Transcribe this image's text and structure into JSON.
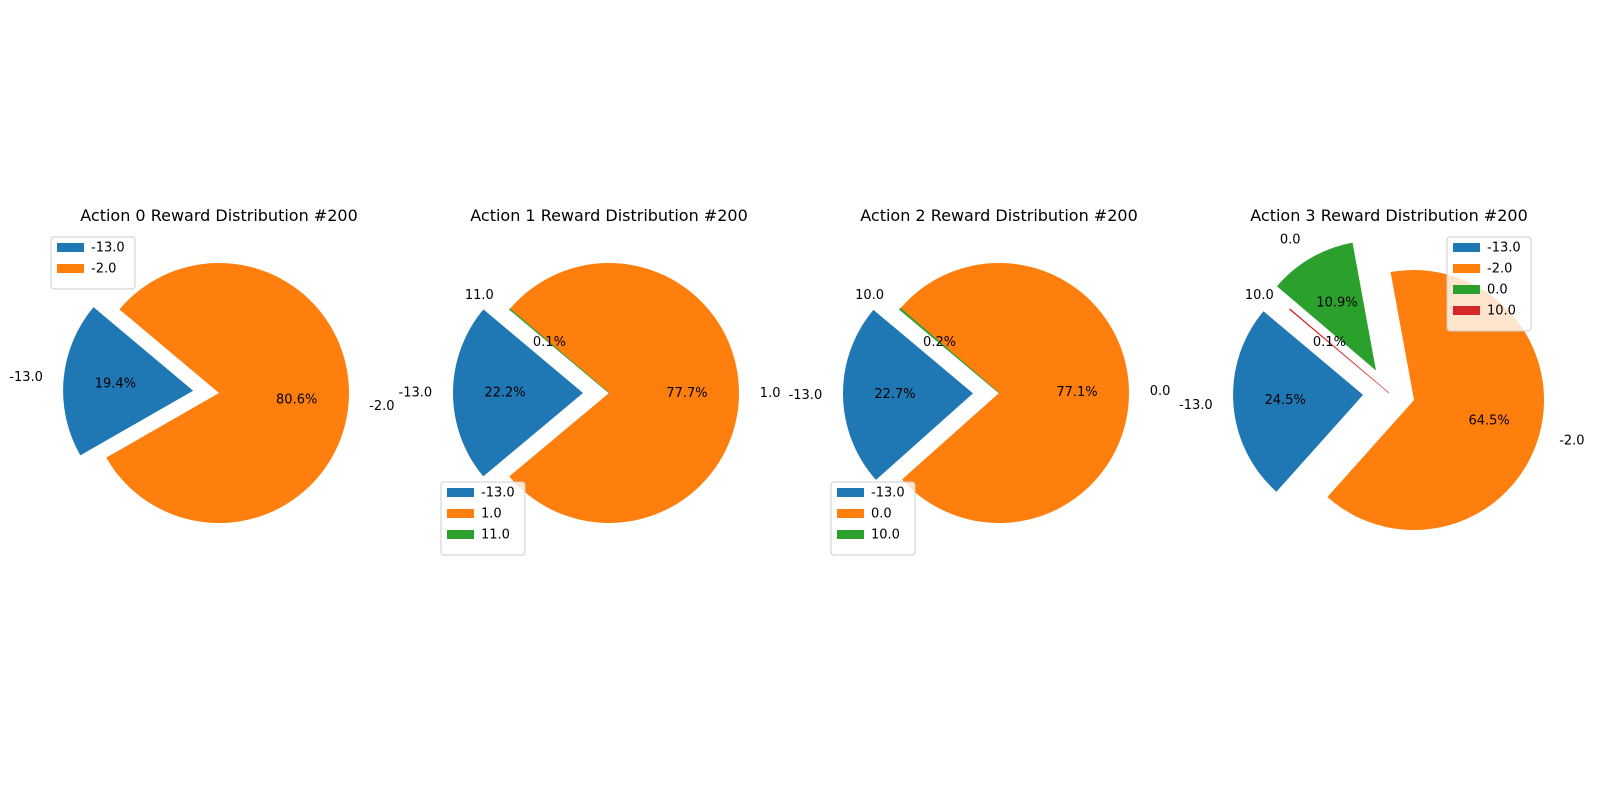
{
  "colors": {
    "c0": "#1f77b4",
    "c1": "#ff7f0e",
    "c2": "#2ca02c",
    "c3": "#d62728"
  },
  "chart_data": [
    {
      "type": "pie",
      "title": "Action 0 Reward Distribution #200",
      "legend": "upper-left",
      "slices": [
        {
          "label": "-13.0",
          "pct_label": "19.4%",
          "value": 19.4,
          "color": "#1f77b4",
          "exploded": true
        },
        {
          "label": "-2.0",
          "pct_label": "80.6%",
          "value": 80.6,
          "color": "#ff7f0e",
          "exploded": false
        }
      ]
    },
    {
      "type": "pie",
      "title": "Action 1 Reward Distribution #200",
      "legend": "lower-left",
      "slices": [
        {
          "label": "-13.0",
          "pct_label": "22.2%",
          "value": 22.2,
          "color": "#1f77b4",
          "exploded": true
        },
        {
          "label": "1.0",
          "pct_label": "77.7%",
          "value": 77.7,
          "color": "#ff7f0e",
          "exploded": false
        },
        {
          "label": "11.0",
          "pct_label": "0.1%",
          "value": 0.1,
          "color": "#2ca02c",
          "exploded": false
        }
      ]
    },
    {
      "type": "pie",
      "title": "Action 2 Reward Distribution #200",
      "legend": "lower-left",
      "slices": [
        {
          "label": "-13.0",
          "pct_label": "22.7%",
          "value": 22.7,
          "color": "#1f77b4",
          "exploded": true
        },
        {
          "label": "0.0",
          "pct_label": "77.1%",
          "value": 77.1,
          "color": "#ff7f0e",
          "exploded": false
        },
        {
          "label": "10.0",
          "pct_label": "0.2%",
          "value": 0.2,
          "color": "#2ca02c",
          "exploded": false
        }
      ]
    },
    {
      "type": "pie",
      "title": "Action 3 Reward Distribution #200",
      "legend": "upper-right",
      "slices": [
        {
          "label": "-13.0",
          "pct_label": "24.5%",
          "value": 24.5,
          "color": "#1f77b4",
          "exploded": true
        },
        {
          "label": "-2.0",
          "pct_label": "64.5%",
          "value": 64.5,
          "color": "#ff7f0e",
          "exploded": true
        },
        {
          "label": "0.0",
          "pct_label": "10.9%",
          "value": 10.9,
          "color": "#2ca02c",
          "exploded": true
        },
        {
          "label": "10.0",
          "pct_label": "0.1%",
          "value": 0.1,
          "color": "#d62728",
          "exploded": false
        }
      ]
    }
  ]
}
